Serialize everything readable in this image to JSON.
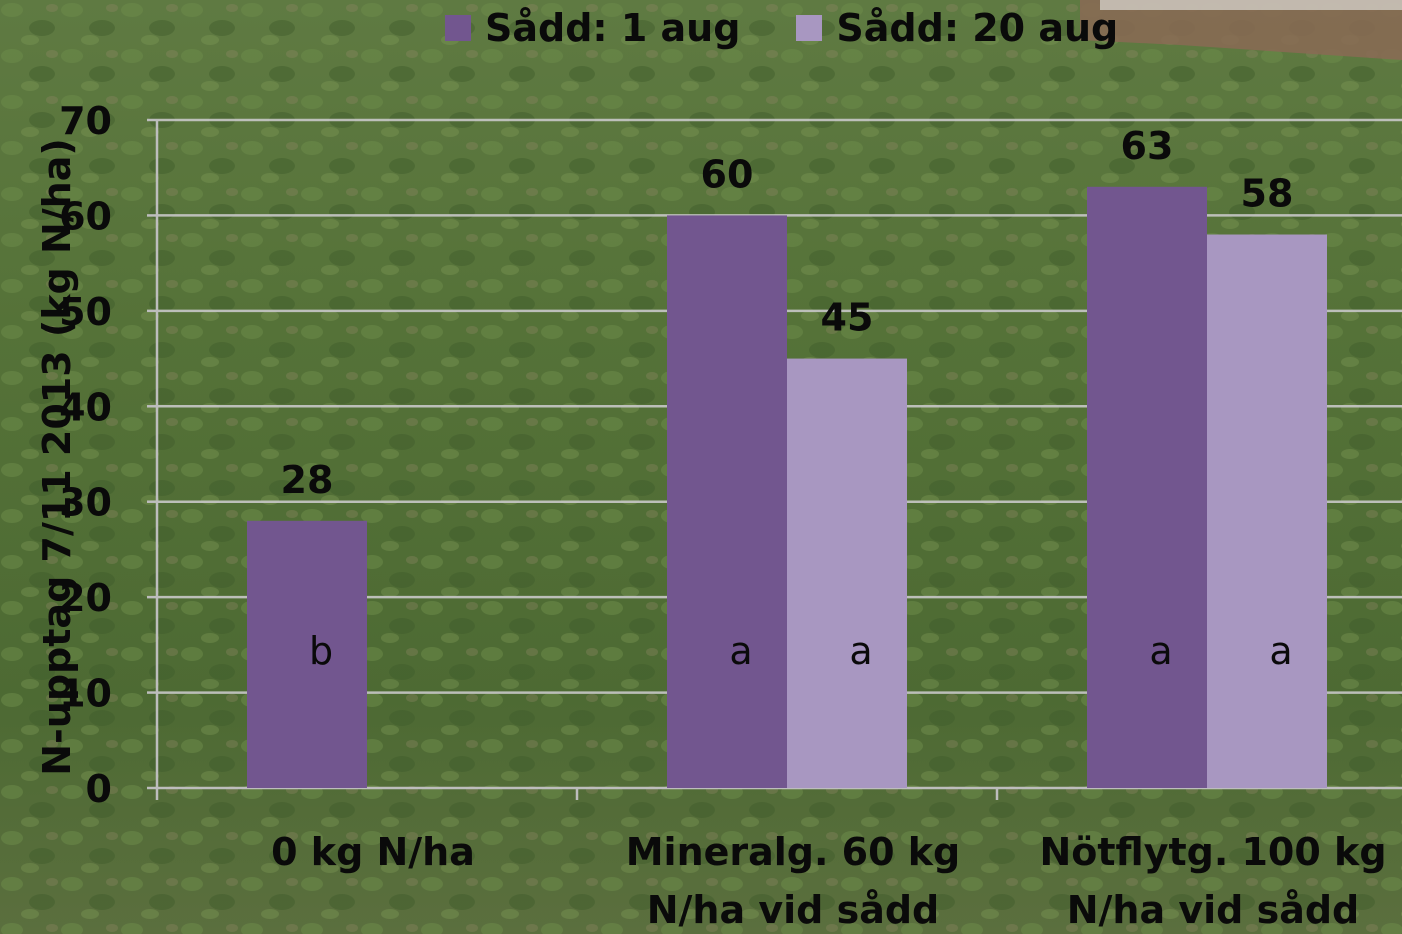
{
  "chart_data": {
    "type": "bar",
    "title": "",
    "ylabel": "N-upptag  7/11 2013  (kg N/ha)",
    "xlabel": "",
    "ylim": [
      0,
      70
    ],
    "yticks": [
      0,
      10,
      20,
      30,
      40,
      50,
      60,
      70
    ],
    "grid": true,
    "legend_position": "top",
    "categories": [
      [
        "0 kg N/ha"
      ],
      [
        "Mineralg. 60 kg",
        "N/ha  vid sådd"
      ],
      [
        "Nötflytg. 100 kg",
        "N/ha vid sådd"
      ]
    ],
    "series": [
      {
        "name": "Sådd: 1 aug",
        "color": "#72568f",
        "values": [
          28,
          60,
          63
        ],
        "data_labels": [
          "28",
          "60",
          "63"
        ],
        "letters": [
          "b",
          "a",
          "a"
        ]
      },
      {
        "name": "Sådd: 20 aug",
        "color": "#a897c1",
        "values": [
          null,
          45,
          58
        ],
        "data_labels": [
          "",
          "45",
          "58"
        ],
        "letters": [
          "",
          "a",
          "a"
        ]
      }
    ]
  }
}
